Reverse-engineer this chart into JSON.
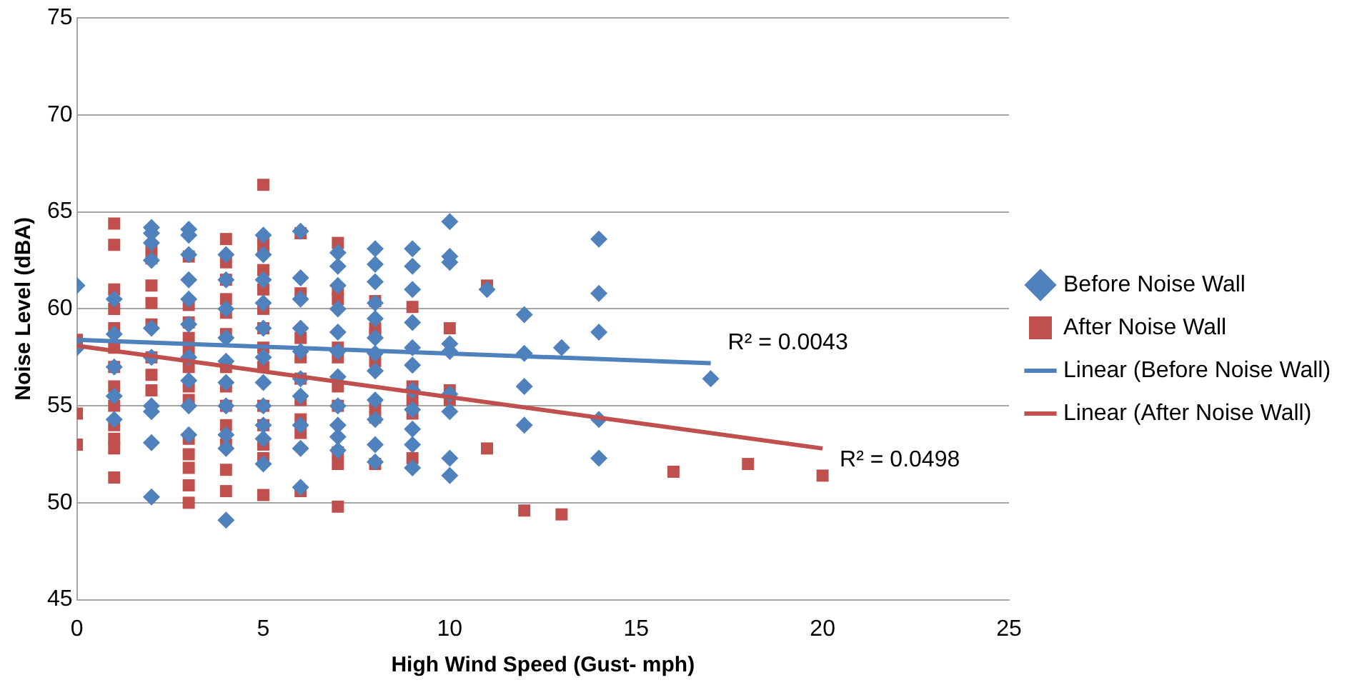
{
  "chart_data": {
    "type": "scatter",
    "xlabel": "High Wind Speed (Gust- mph)",
    "ylabel": "Noise Level (dBA)",
    "xlim": [
      0,
      25
    ],
    "xticks": [
      0,
      5,
      10,
      15,
      20,
      25
    ],
    "ylim": [
      45,
      75
    ],
    "yticks": [
      45,
      50,
      55,
      60,
      65,
      70,
      75
    ],
    "grid": "y",
    "legend": "right",
    "series": [
      {
        "name": "Before Noise Wall",
        "color": "#4f81bd",
        "marker": "diamond",
        "x": [
          0,
          0,
          1,
          1,
          1,
          1,
          1,
          2,
          2,
          2,
          2,
          2,
          2,
          2,
          2,
          2,
          2,
          3,
          3,
          3,
          3,
          3,
          3,
          3,
          3,
          3,
          3,
          4,
          4,
          4,
          4,
          4,
          4,
          4,
          4,
          4,
          4,
          5,
          5,
          5,
          5,
          5,
          5,
          5,
          5,
          5,
          5,
          5,
          6,
          6,
          6,
          6,
          6,
          6,
          6,
          6,
          6,
          6,
          7,
          7,
          7,
          7,
          7,
          7,
          7,
          7,
          7,
          7,
          7,
          8,
          8,
          8,
          8,
          8,
          8,
          8,
          8,
          8,
          8,
          8,
          8,
          9,
          9,
          9,
          9,
          9,
          9,
          9,
          9,
          9,
          9,
          9,
          10,
          10,
          10,
          10,
          10,
          10,
          10,
          10,
          10,
          11,
          12,
          12,
          12,
          12,
          13,
          14,
          14,
          14,
          14,
          14,
          17
        ],
        "values": [
          61.2,
          58.0,
          54.3,
          55.5,
          57.0,
          58.7,
          60.5,
          64.2,
          63.9,
          63.4,
          62.5,
          59.0,
          57.5,
          55.0,
          54.7,
          53.1,
          50.3,
          64.1,
          63.8,
          62.8,
          61.5,
          60.5,
          59.2,
          57.5,
          56.3,
          55.0,
          53.5,
          62.8,
          61.5,
          60.0,
          58.5,
          57.3,
          56.2,
          55.0,
          53.5,
          52.8,
          49.1,
          63.8,
          62.8,
          61.5,
          60.3,
          59.0,
          57.5,
          56.2,
          55.0,
          54.0,
          53.3,
          52.0,
          64.0,
          61.6,
          60.5,
          59.0,
          57.8,
          56.4,
          55.5,
          54.0,
          52.8,
          50.8,
          62.9,
          62.2,
          61.2,
          60.0,
          58.8,
          57.8,
          56.5,
          55.0,
          54.0,
          53.4,
          52.7,
          63.1,
          62.3,
          61.4,
          60.3,
          59.5,
          58.5,
          57.7,
          56.8,
          55.3,
          54.3,
          53.0,
          52.1,
          63.1,
          62.2,
          61.0,
          59.3,
          58.0,
          57.1,
          55.8,
          54.8,
          53.8,
          53.0,
          51.8,
          64.5,
          62.7,
          62.4,
          58.2,
          57.8,
          55.6,
          54.7,
          52.3,
          51.4,
          61.0,
          59.7,
          57.7,
          56.0,
          54.0,
          58.0,
          63.6,
          60.8,
          58.8,
          54.3,
          52.3,
          56.4
        ]
      },
      {
        "name": "After Noise Wall",
        "color": "#c0504d",
        "marker": "square",
        "x": [
          0,
          0,
          0,
          1,
          1,
          1,
          1,
          1,
          1,
          1,
          1,
          1,
          1,
          1,
          1,
          1,
          2,
          2,
          2,
          2,
          2,
          2,
          2,
          2,
          3,
          3,
          3,
          3,
          3,
          3,
          3,
          3,
          3,
          3,
          3,
          3,
          3,
          4,
          4,
          4,
          4,
          4,
          4,
          4,
          4,
          4,
          4,
          4,
          4,
          4,
          5,
          5,
          5,
          5,
          5,
          5,
          5,
          5,
          5,
          5,
          5,
          5,
          5,
          5,
          6,
          6,
          6,
          6,
          6,
          6,
          6,
          6,
          6,
          7,
          7,
          7,
          7,
          7,
          7,
          7,
          7,
          7,
          7,
          8,
          8,
          8,
          8,
          8,
          8,
          8,
          9,
          9,
          9,
          9,
          9,
          10,
          10,
          10,
          11,
          11,
          12,
          13,
          16,
          18,
          20
        ],
        "values": [
          58.4,
          54.6,
          53.0,
          64.4,
          63.3,
          61.0,
          60.0,
          59.0,
          58.0,
          57.0,
          56.0,
          55.0,
          54.0,
          53.3,
          52.8,
          51.3,
          63.2,
          62.6,
          61.2,
          60.3,
          59.2,
          57.5,
          56.6,
          55.8,
          62.7,
          60.2,
          59.3,
          58.5,
          57.8,
          57.0,
          56.0,
          55.3,
          53.3,
          52.5,
          51.8,
          50.9,
          50.0,
          63.6,
          62.4,
          61.5,
          60.5,
          59.8,
          58.7,
          57.0,
          56.0,
          55.0,
          54.0,
          53.0,
          51.7,
          50.6,
          66.4,
          63.6,
          63.0,
          62.0,
          61.0,
          60.0,
          59.0,
          58.0,
          57.0,
          55.0,
          54.0,
          53.0,
          52.3,
          50.4,
          63.9,
          60.8,
          58.5,
          57.5,
          56.4,
          55.3,
          54.3,
          53.6,
          50.6,
          63.4,
          61.0,
          60.5,
          58.0,
          57.5,
          56.0,
          55.0,
          52.6,
          52.0,
          49.8,
          60.4,
          59.0,
          58.7,
          57.3,
          55.0,
          54.4,
          52.0,
          60.1,
          56.0,
          55.3,
          54.6,
          52.3,
          59.0,
          55.8,
          55.3,
          61.2,
          52.8,
          49.6,
          49.4,
          51.6,
          52.0,
          51.4
        ]
      },
      {
        "name": "Linear (Before Noise Wall)",
        "type": "line",
        "color": "#4f81bd",
        "marker": "none",
        "x": [
          0,
          17
        ],
        "values": [
          58.4,
          57.2
        ]
      },
      {
        "name": "Linear (After Noise Wall)",
        "type": "line",
        "color": "#c0504d",
        "marker": "none",
        "x": [
          0,
          20
        ],
        "values": [
          58.1,
          52.8
        ]
      }
    ],
    "annotations": [
      "R² = 0.0043",
      "R² = 0.0498"
    ]
  }
}
